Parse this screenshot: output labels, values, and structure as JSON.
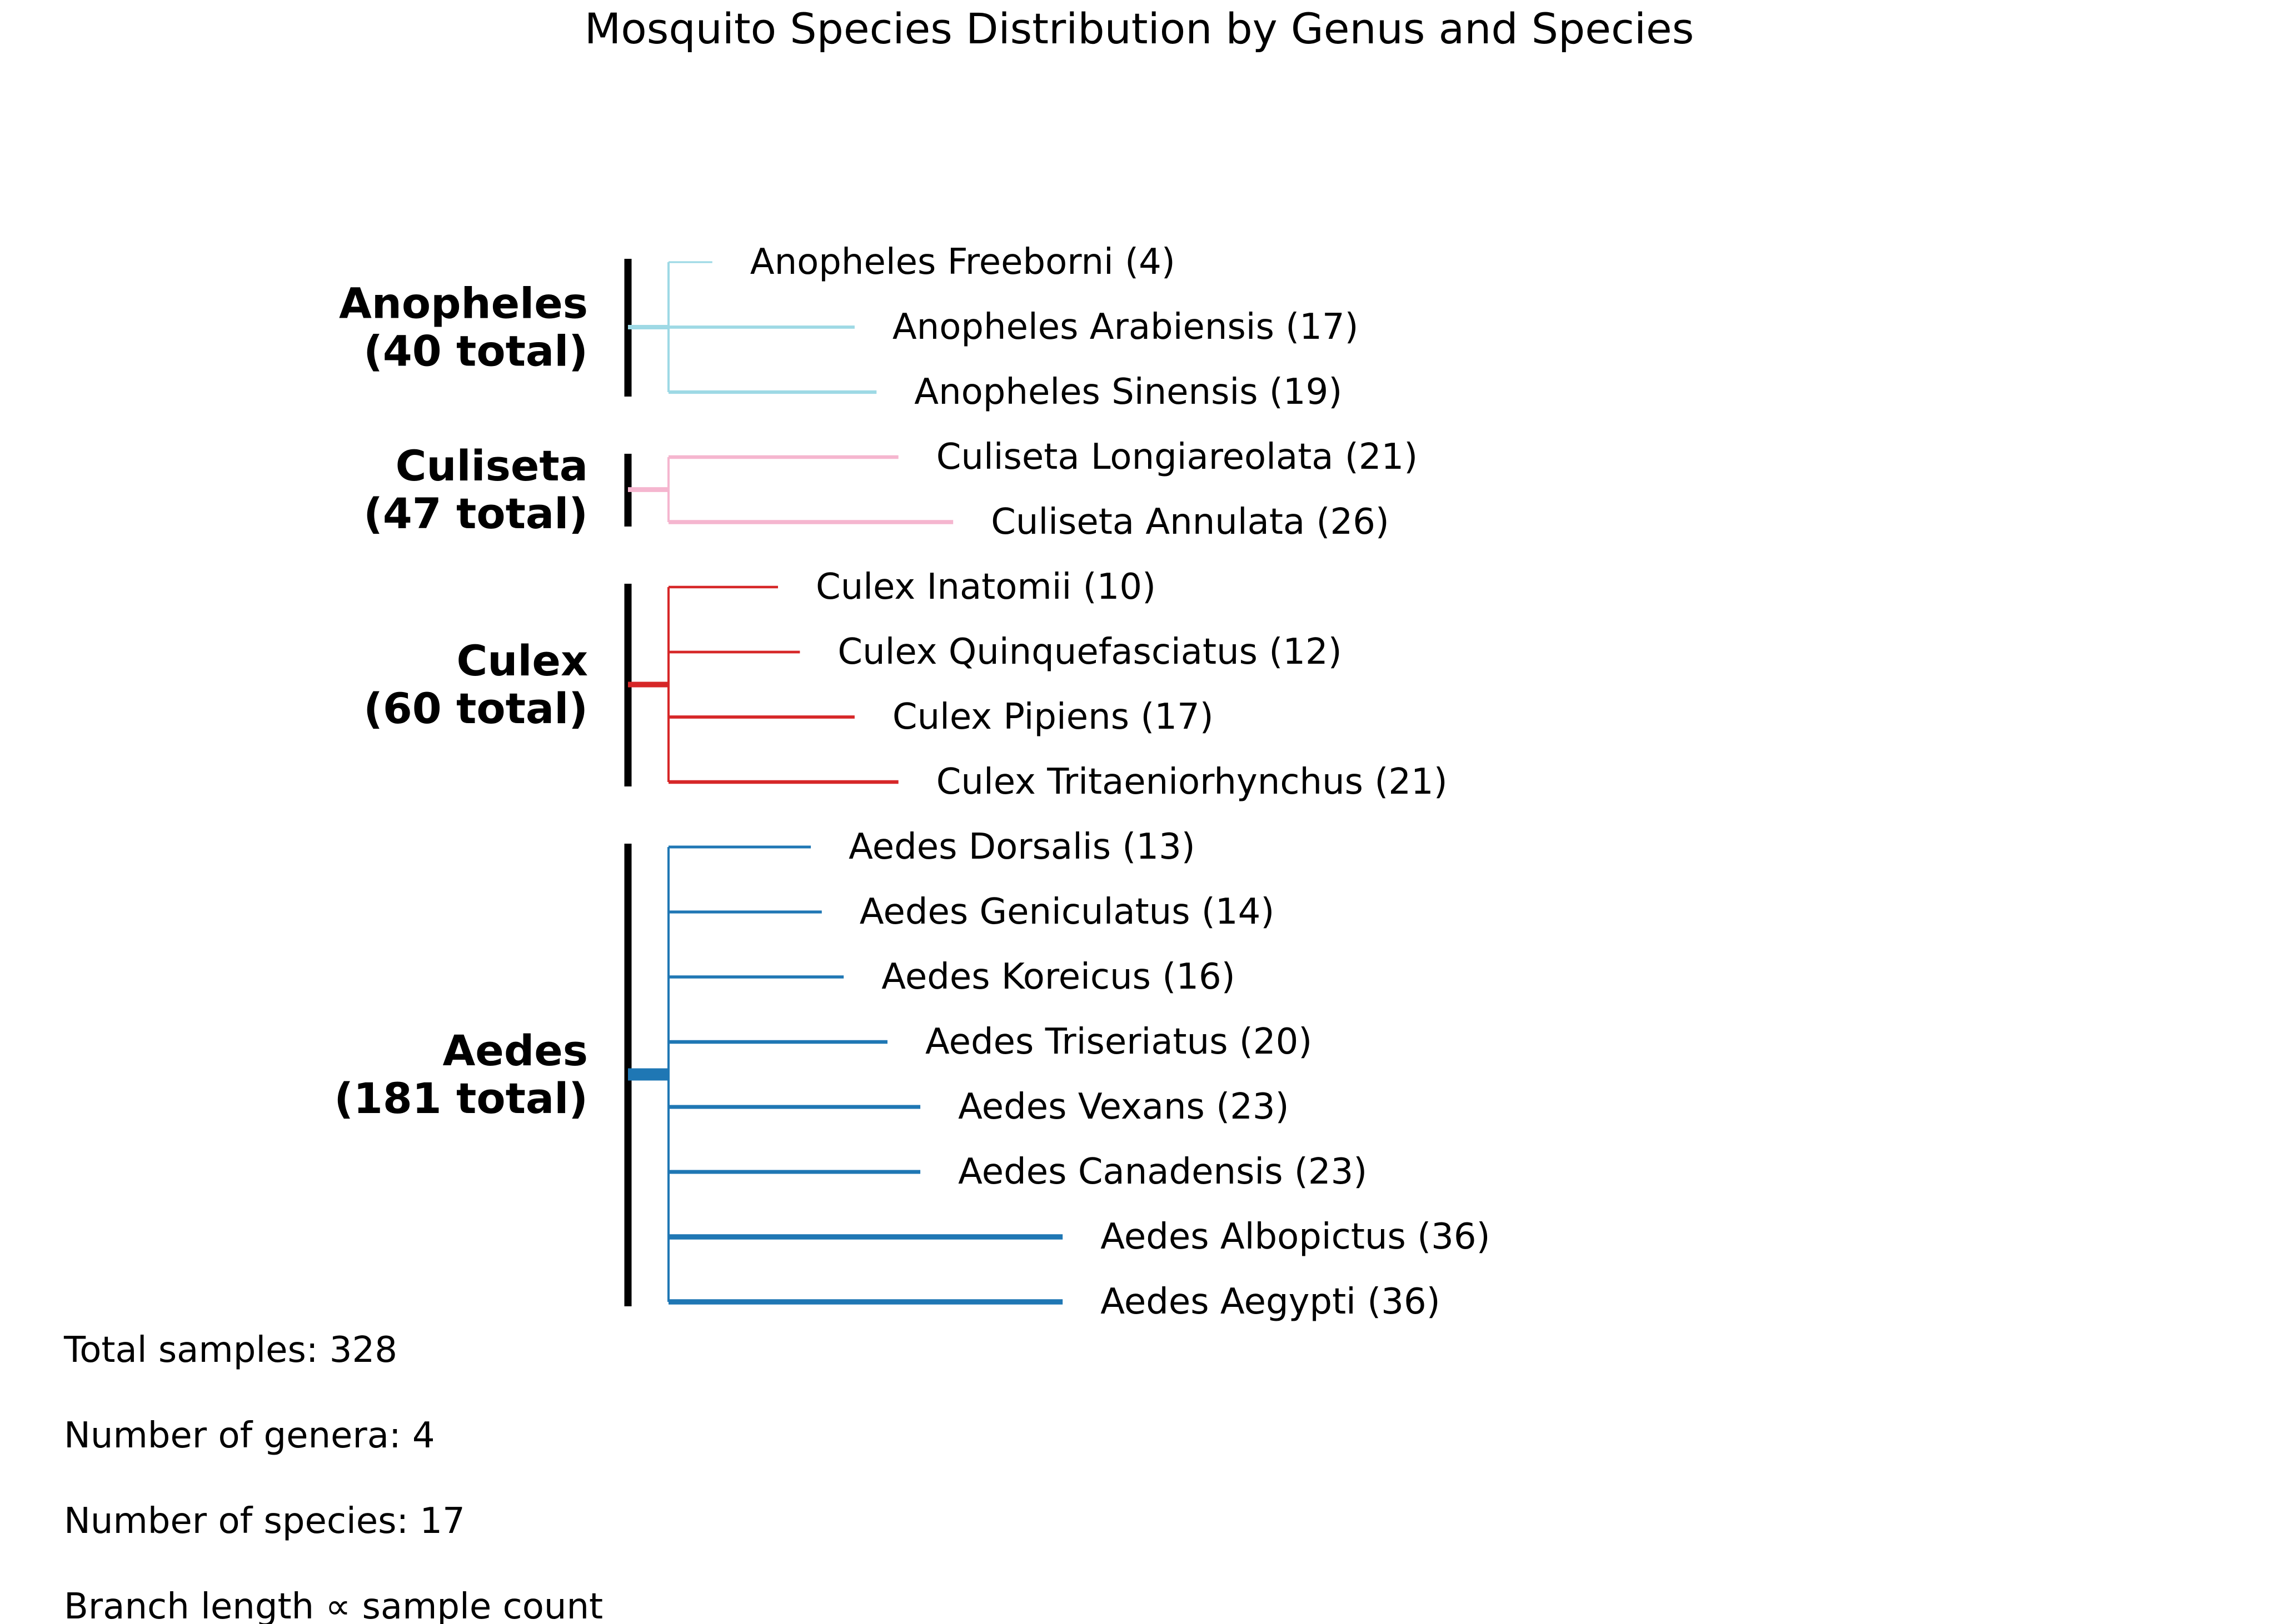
{
  "chart_data": {
    "type": "tree",
    "title": "Mosquito Species Distribution by Genus and Species",
    "genera": [
      {
        "name": "Anopheles",
        "total_label": "(40 total)",
        "total": 40,
        "color": "#9ed9e5",
        "species": [
          {
            "label": "Anopheles Freeborni (4)",
            "count": 4
          },
          {
            "label": "Anopheles Arabiensis (17)",
            "count": 17
          },
          {
            "label": "Anopheles Sinensis (19)",
            "count": 19
          }
        ]
      },
      {
        "name": "Culiseta",
        "total_label": "(47 total)",
        "total": 47,
        "color": "#f5b6cf",
        "species": [
          {
            "label": "Culiseta Longiareolata (21)",
            "count": 21
          },
          {
            "label": "Culiseta Annulata (26)",
            "count": 26
          }
        ]
      },
      {
        "name": "Culex",
        "total_label": "(60 total)",
        "total": 60,
        "color": "#d62728",
        "species": [
          {
            "label": "Culex Inatomii (10)",
            "count": 10
          },
          {
            "label": "Culex Quinquefasciatus (12)",
            "count": 12
          },
          {
            "label": "Culex Pipiens (17)",
            "count": 17
          },
          {
            "label": "Culex Tritaeniorhynchus (21)",
            "count": 21
          }
        ]
      },
      {
        "name": "Aedes",
        "total_label": "(181 total)",
        "total": 181,
        "color": "#1f77b4",
        "species": [
          {
            "label": "Aedes Dorsalis (13)",
            "count": 13
          },
          {
            "label": "Aedes Geniculatus (14)",
            "count": 14
          },
          {
            "label": "Aedes Koreicus (16)",
            "count": 16
          },
          {
            "label": "Aedes Triseriatus (20)",
            "count": 20
          },
          {
            "label": "Aedes Vexans (23)",
            "count": 23
          },
          {
            "label": "Aedes Canadensis (23)",
            "count": 23
          },
          {
            "label": "Aedes Albopictus (36)",
            "count": 36
          },
          {
            "label": "Aedes Aegypti (36)",
            "count": 36
          }
        ]
      }
    ],
    "stats": [
      "Total samples: 328",
      "Number of genera: 4",
      "Number of species: 17",
      "Branch length ∝ sample count"
    ]
  }
}
